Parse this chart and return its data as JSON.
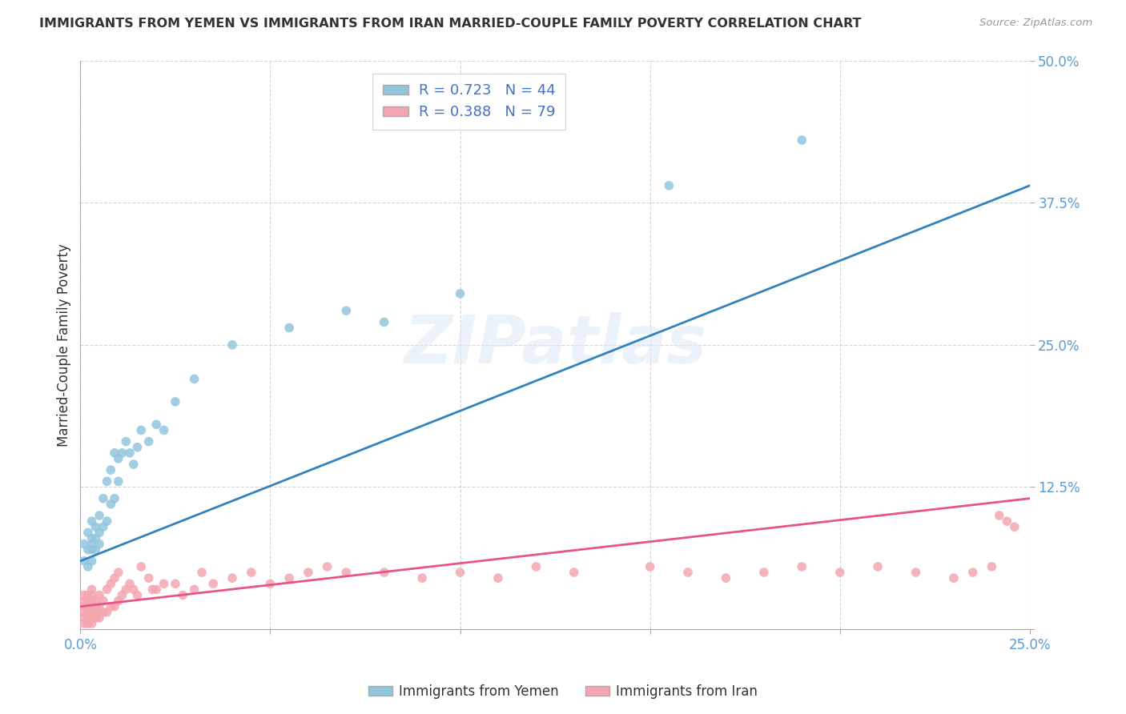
{
  "title": "IMMIGRANTS FROM YEMEN VS IMMIGRANTS FROM IRAN MARRIED-COUPLE FAMILY POVERTY CORRELATION CHART",
  "source": "Source: ZipAtlas.com",
  "ylabel": "Married-Couple Family Poverty",
  "xlim": [
    0,
    0.25
  ],
  "ylim": [
    0,
    0.5
  ],
  "yemen_color": "#92c5de",
  "iran_color": "#f4a6b0",
  "regression_yemen_color": "#3182bd",
  "regression_iran_color": "#e8538a",
  "tick_color": "#5b9bd5",
  "legend_text_color": "#4472c4",
  "legend_R_yemen": "R = 0.723",
  "legend_N_yemen": "N = 44",
  "legend_R_iran": "R = 0.388",
  "legend_N_iran": "N = 79",
  "watermark": "ZIPatlas",
  "grid_color": "#cccccc",
  "background": "white",
  "yemen_x": [
    0.001,
    0.001,
    0.002,
    0.002,
    0.002,
    0.003,
    0.003,
    0.003,
    0.003,
    0.003,
    0.004,
    0.004,
    0.004,
    0.005,
    0.005,
    0.005,
    0.006,
    0.006,
    0.007,
    0.007,
    0.008,
    0.008,
    0.009,
    0.009,
    0.01,
    0.01,
    0.011,
    0.012,
    0.013,
    0.014,
    0.015,
    0.016,
    0.018,
    0.02,
    0.022,
    0.025,
    0.03,
    0.04,
    0.055,
    0.07,
    0.08,
    0.1,
    0.155,
    0.19
  ],
  "yemen_y": [
    0.06,
    0.075,
    0.055,
    0.07,
    0.085,
    0.06,
    0.07,
    0.075,
    0.08,
    0.095,
    0.07,
    0.08,
    0.09,
    0.075,
    0.085,
    0.1,
    0.09,
    0.115,
    0.095,
    0.13,
    0.11,
    0.14,
    0.115,
    0.155,
    0.13,
    0.15,
    0.155,
    0.165,
    0.155,
    0.145,
    0.16,
    0.175,
    0.165,
    0.18,
    0.175,
    0.2,
    0.22,
    0.25,
    0.265,
    0.28,
    0.27,
    0.295,
    0.39,
    0.43
  ],
  "iran_x": [
    0.001,
    0.001,
    0.001,
    0.001,
    0.001,
    0.001,
    0.002,
    0.002,
    0.002,
    0.002,
    0.002,
    0.002,
    0.003,
    0.003,
    0.003,
    0.003,
    0.003,
    0.003,
    0.003,
    0.004,
    0.004,
    0.004,
    0.004,
    0.005,
    0.005,
    0.005,
    0.005,
    0.006,
    0.006,
    0.007,
    0.007,
    0.008,
    0.008,
    0.009,
    0.009,
    0.01,
    0.01,
    0.011,
    0.012,
    0.013,
    0.014,
    0.015,
    0.016,
    0.018,
    0.019,
    0.02,
    0.022,
    0.025,
    0.027,
    0.03,
    0.032,
    0.035,
    0.04,
    0.045,
    0.05,
    0.055,
    0.06,
    0.065,
    0.07,
    0.08,
    0.09,
    0.1,
    0.11,
    0.12,
    0.13,
    0.15,
    0.16,
    0.17,
    0.18,
    0.19,
    0.2,
    0.21,
    0.22,
    0.23,
    0.235,
    0.24,
    0.242,
    0.244,
    0.246
  ],
  "iran_y": [
    0.005,
    0.01,
    0.015,
    0.02,
    0.025,
    0.03,
    0.005,
    0.01,
    0.015,
    0.02,
    0.025,
    0.03,
    0.005,
    0.01,
    0.015,
    0.02,
    0.025,
    0.03,
    0.035,
    0.01,
    0.015,
    0.02,
    0.025,
    0.01,
    0.015,
    0.02,
    0.03,
    0.015,
    0.025,
    0.015,
    0.035,
    0.02,
    0.04,
    0.02,
    0.045,
    0.025,
    0.05,
    0.03,
    0.035,
    0.04,
    0.035,
    0.03,
    0.055,
    0.045,
    0.035,
    0.035,
    0.04,
    0.04,
    0.03,
    0.035,
    0.05,
    0.04,
    0.045,
    0.05,
    0.04,
    0.045,
    0.05,
    0.055,
    0.05,
    0.05,
    0.045,
    0.05,
    0.045,
    0.055,
    0.05,
    0.055,
    0.05,
    0.045,
    0.05,
    0.055,
    0.05,
    0.055,
    0.05,
    0.045,
    0.05,
    0.055,
    0.1,
    0.095,
    0.09
  ]
}
